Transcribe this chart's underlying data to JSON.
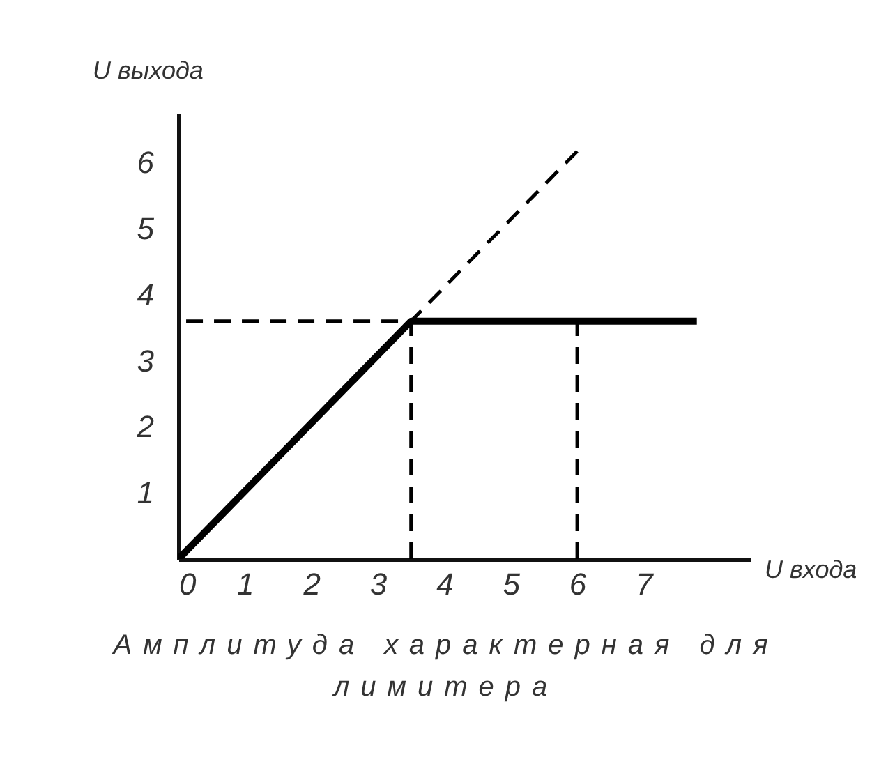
{
  "chart_data": {
    "type": "line",
    "title": "Амплитуда характерная для лимитера",
    "xlabel": "U  входа",
    "ylabel": "U  выхода",
    "xlim": [
      0,
      8.6
    ],
    "ylim": [
      0,
      6.75
    ],
    "xticks": [
      0,
      1,
      2,
      3,
      4,
      5,
      6,
      7
    ],
    "yticks": [
      1,
      2,
      3,
      4,
      5,
      6
    ],
    "grid": false,
    "marker": "none",
    "series": [
      {
        "color": "#000000",
        "line_style": "dashed",
        "x": [
          0,
          6
        ],
        "values": [
          0,
          6.17
        ]
      },
      {
        "color": "#000000",
        "line_style": "dashed",
        "x": [
          0,
          3.5,
          3.5
        ],
        "values": [
          3.6,
          3.6,
          0
        ]
      },
      {
        "color": "#000000",
        "line_style": "dashed",
        "x": [
          6,
          6
        ],
        "values": [
          3.6,
          0
        ]
      },
      {
        "color": "#000000",
        "line_style": "solid",
        "x": [
          0,
          3.5,
          7.8
        ],
        "values": [
          0,
          3.6,
          3.6
        ]
      }
    ]
  }
}
